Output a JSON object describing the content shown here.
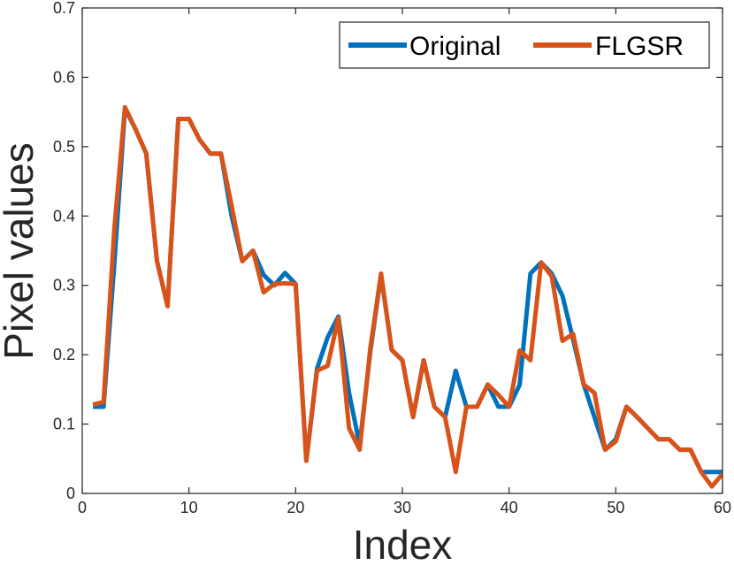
{
  "chart_data": {
    "type": "line",
    "xlabel": "Index",
    "ylabel": "Pixel values",
    "xlim": [
      0,
      60
    ],
    "ylim": [
      0,
      0.7
    ],
    "xticks": [
      0,
      10,
      20,
      30,
      40,
      50,
      60
    ],
    "yticks": [
      0,
      0.1,
      0.2,
      0.3,
      0.4,
      0.5,
      0.6,
      0.7
    ],
    "xtick_labels": [
      "0",
      "10",
      "20",
      "30",
      "40",
      "50",
      "60"
    ],
    "ytick_labels": [
      "0",
      "0.1",
      "0.2",
      "0.3",
      "0.4",
      "0.5",
      "0.6",
      "0.7"
    ],
    "grid": false,
    "legend_position": "top-right",
    "x": [
      1,
      2,
      3,
      4,
      5,
      6,
      7,
      8,
      9,
      10,
      11,
      12,
      13,
      14,
      15,
      16,
      17,
      18,
      19,
      20,
      21,
      22,
      23,
      24,
      25,
      26,
      27,
      28,
      29,
      30,
      31,
      32,
      33,
      34,
      35,
      36,
      37,
      38,
      39,
      40,
      41,
      42,
      43,
      44,
      45,
      46,
      47,
      48,
      49,
      50,
      51,
      52,
      53,
      54,
      55,
      56,
      57,
      58,
      59,
      60
    ],
    "series": [
      {
        "name": "Original",
        "color": "#0072BD",
        "values": [
          0.125,
          0.125,
          0.33,
          0.555,
          0.525,
          0.49,
          0.335,
          0.27,
          0.54,
          0.54,
          0.51,
          0.49,
          0.49,
          0.4,
          0.335,
          0.35,
          0.315,
          0.3,
          0.318,
          0.302,
          0.047,
          0.18,
          0.225,
          0.255,
          0.145,
          0.07,
          0.205,
          0.315,
          0.207,
          0.192,
          0.11,
          0.192,
          0.125,
          0.11,
          0.177,
          0.125,
          0.125,
          0.157,
          0.125,
          0.125,
          0.157,
          0.317,
          0.333,
          0.317,
          0.285,
          0.222,
          0.157,
          0.11,
          0.063,
          0.078,
          0.125,
          0.11,
          0.094,
          0.078,
          0.078,
          0.063,
          0.063,
          0.031,
          0.031,
          0.031
        ]
      },
      {
        "name": "FLGSR",
        "color": "#D95319",
        "values": [
          0.128,
          0.132,
          0.38,
          0.557,
          0.525,
          0.49,
          0.335,
          0.27,
          0.54,
          0.54,
          0.51,
          0.49,
          0.49,
          0.415,
          0.335,
          0.35,
          0.29,
          0.302,
          0.303,
          0.302,
          0.047,
          0.177,
          0.184,
          0.253,
          0.094,
          0.063,
          0.21,
          0.317,
          0.207,
          0.192,
          0.11,
          0.192,
          0.125,
          0.11,
          0.031,
          0.125,
          0.125,
          0.157,
          0.142,
          0.125,
          0.206,
          0.192,
          0.333,
          0.313,
          0.22,
          0.23,
          0.157,
          0.145,
          0.063,
          0.075,
          0.125,
          0.11,
          0.094,
          0.078,
          0.078,
          0.063,
          0.063,
          0.031,
          0.01,
          0.028
        ]
      }
    ]
  }
}
